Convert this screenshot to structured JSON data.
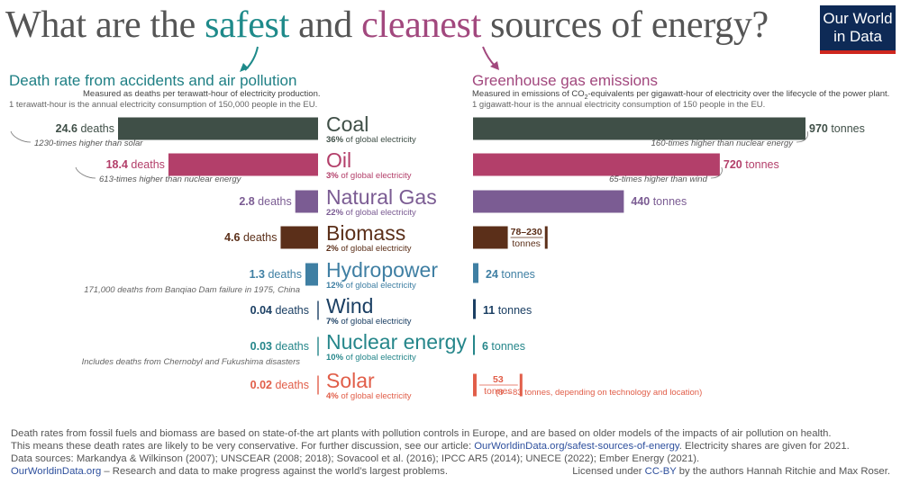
{
  "header": {
    "title_pre": "What are the ",
    "title_safe": "safest",
    "title_mid": " and ",
    "title_clean": "cleanest",
    "title_post": " sources of energy?"
  },
  "logo": {
    "line1": "Our World",
    "line2": "in Data"
  },
  "left_panel": {
    "title": "Death rate from accidents and air pollution",
    "subtitle": "Measured as deaths per terawatt-hour of electricity production.",
    "note": "1 terawatt-hour is the annual electricity consumption of 150,000 people in the EU."
  },
  "right_panel": {
    "title": "Greenhouse gas emissions",
    "subtitle_pre": "Measured in emissions of CO",
    "subtitle_sub": "2",
    "subtitle_post": "-equivalents per gigawatt-hour of electricity over the lifecycle of the power plant.",
    "note": "1 gigawatt-hour is the annual electricity consumption of 150 people in the EU."
  },
  "chart_data": [
    {
      "type": "bar",
      "title": "Death rate from accidents and air pollution",
      "categories": [
        "Coal",
        "Oil",
        "Natural Gas",
        "Biomass",
        "Hydropower",
        "Wind",
        "Nuclear energy",
        "Solar"
      ],
      "values": [
        24.6,
        18.4,
        2.8,
        4.6,
        1.3,
        0.04,
        0.03,
        0.02
      ],
      "unit": "deaths",
      "value_labels": [
        "24.6",
        "18.4",
        "2.8",
        "4.6",
        "1.3",
        "0.04",
        "0.03",
        "0.02"
      ],
      "annotations": [
        "1230-times higher than solar",
        "613-times higher than nuclear energy",
        "",
        "",
        "171,000 deaths from Banqiao Dam failure in 1975, China",
        "",
        "Includes deaths from Chernobyl and Fukushima disasters",
        ""
      ]
    },
    {
      "type": "bar",
      "title": "Greenhouse gas emissions",
      "categories": [
        "Coal",
        "Oil",
        "Natural Gas",
        "Biomass",
        "Hydropower",
        "Wind",
        "Nuclear energy",
        "Solar"
      ],
      "values": [
        970,
        720,
        440,
        null,
        24,
        11,
        6,
        53
      ],
      "ranges": [
        null,
        null,
        null,
        [
          78,
          230
        ],
        null,
        null,
        null,
        [
          8,
          83
        ]
      ],
      "unit": "tonnes",
      "value_labels": [
        "970",
        "720",
        "440",
        "78–230",
        "24",
        "11",
        "6",
        "53"
      ],
      "annotations": [
        "160-times higher than nuclear energy",
        "65-times higher than wind",
        "",
        "",
        "",
        "",
        "",
        "(8 – 83 tonnes, depending on technology and location)"
      ]
    }
  ],
  "energy_sources": [
    {
      "name": "Coal",
      "share": "36%",
      "color": "#3f4f47"
    },
    {
      "name": "Oil",
      "share": "3%",
      "color": "#b33f6a"
    },
    {
      "name": "Natural Gas",
      "share": "22%",
      "color": "#7b5c93"
    },
    {
      "name": "Biomass",
      "share": "2%",
      "color": "#5b2f19"
    },
    {
      "name": "Hydropower",
      "share": "12%",
      "color": "#3f7fa3"
    },
    {
      "name": "Wind",
      "share": "7%",
      "color": "#1b3f63"
    },
    {
      "name": "Nuclear energy",
      "share": "10%",
      "color": "#25868a"
    },
    {
      "name": "Solar",
      "share": "4%",
      "color": "#e15e49"
    }
  ],
  "labels": {
    "share_suffix": " of global electricity",
    "deaths_unit": "deaths",
    "tonnes_unit": "tonnes"
  },
  "footer": {
    "line1": "Death rates from fossil fuels and biomass are based on state-of-the art plants with pollution controls in Europe, and are based on older models of the impacts of air pollution on health.",
    "line2_pre": "This means these death rates are likely to be very conservative. For further discussion, see our article: ",
    "line2_link": "OurWorldinData.org/safest-sources-of-energy",
    "line2_post": ". Electricity shares are given for 2021.",
    "line3": "Data sources: Markandya & Wilkinson (2007); UNSCEAR (2008; 2018); Sovacool et al. (2016); IPCC AR5 (2014); UNECE (2022); Ember Energy (2021).",
    "line4_link": "OurWorldinData.org",
    "line4_post": " – Research and data to make progress against the world’s largest problems.",
    "license_pre": "Licensed under ",
    "license_link": "CC-BY",
    "license_post": " by the authors Hannah Ritchie and Max Roser."
  },
  "colors": {
    "safe": "#1e8a8a",
    "clean": "#a2487e",
    "logo_bg": "#0e2a56",
    "logo_accent": "#ce261e",
    "link": "#2d4f9d"
  }
}
